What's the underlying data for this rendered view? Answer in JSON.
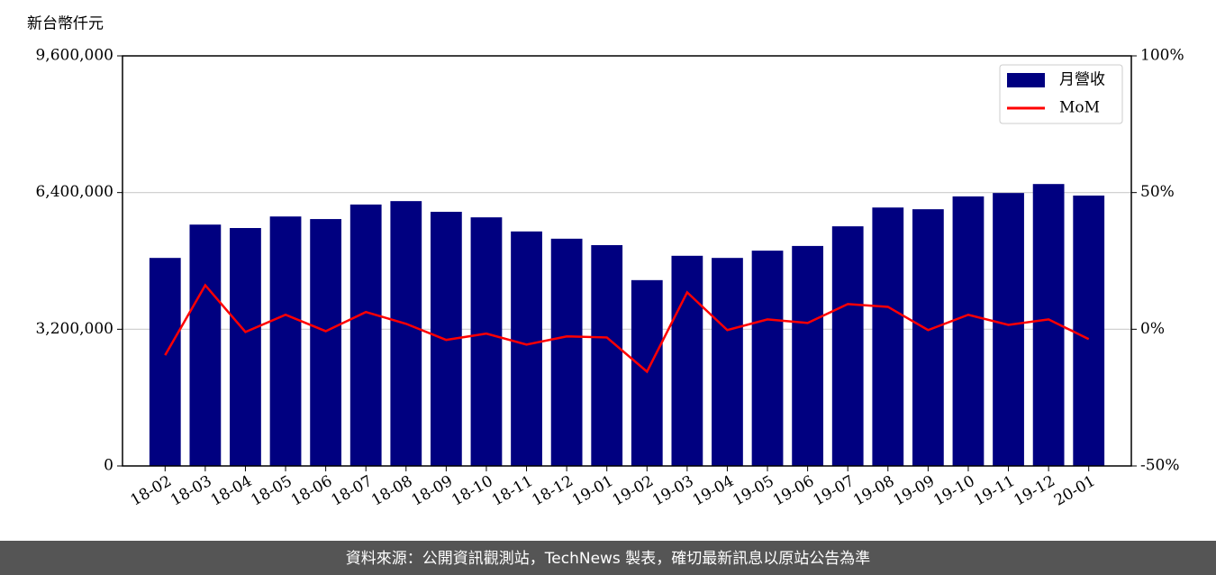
{
  "chart_data": {
    "type": "bar",
    "y_label": "新台幣仟元",
    "source": "資料來源：公開資訊觀測站，TechNews 製表，確切最新訊息以原站公告為準",
    "categories": [
      "18-02",
      "18-03",
      "18-04",
      "18-05",
      "18-06",
      "18-07",
      "18-08",
      "18-09",
      "18-10",
      "18-11",
      "18-12",
      "19-01",
      "19-02",
      "19-03",
      "19-04",
      "19-05",
      "19-06",
      "19-07",
      "19-08",
      "19-09",
      "19-10",
      "19-11",
      "19-12",
      "20-01"
    ],
    "series": [
      {
        "name": "月營收",
        "color": "#000080",
        "values": [
          4870000,
          5650000,
          5570000,
          5840000,
          5780000,
          6120000,
          6200000,
          5950000,
          5820000,
          5490000,
          5320000,
          5170000,
          4350000,
          4920000,
          4870000,
          5040000,
          5150000,
          5610000,
          6050000,
          6010000,
          6310000,
          6390000,
          6600000,
          6330000
        ]
      },
      {
        "name": "MoM",
        "color": "#ff0000",
        "type": "line",
        "axis": "y2",
        "values": [
          -9.5,
          16.1,
          -1.0,
          5.3,
          -0.7,
          6.3,
          2.0,
          -3.9,
          -1.6,
          -5.6,
          -2.6,
          -3.0,
          -15.5,
          13.5,
          -0.3,
          3.6,
          2.3,
          9.2,
          8.2,
          -0.3,
          5.3,
          1.6,
          3.6,
          -3.6
        ]
      }
    ],
    "ylim": [
      0,
      9600000
    ],
    "yticks": [
      0,
      {
        "value": 3200000,
        "label": "3,200,000"
      },
      {
        "value": 6400000,
        "label": "6,400,000"
      },
      {
        "value": 9600000,
        "label": "9,600,000"
      }
    ],
    "y2lim": [
      -50,
      100
    ],
    "y2ticks": [
      {
        "value": -50,
        "label": "-50%"
      },
      {
        "value": 0,
        "label": "0%"
      },
      {
        "value": 50,
        "label": "50%"
      },
      {
        "value": 100,
        "label": "100%"
      }
    ],
    "grid": true,
    "legend": "upper right"
  }
}
